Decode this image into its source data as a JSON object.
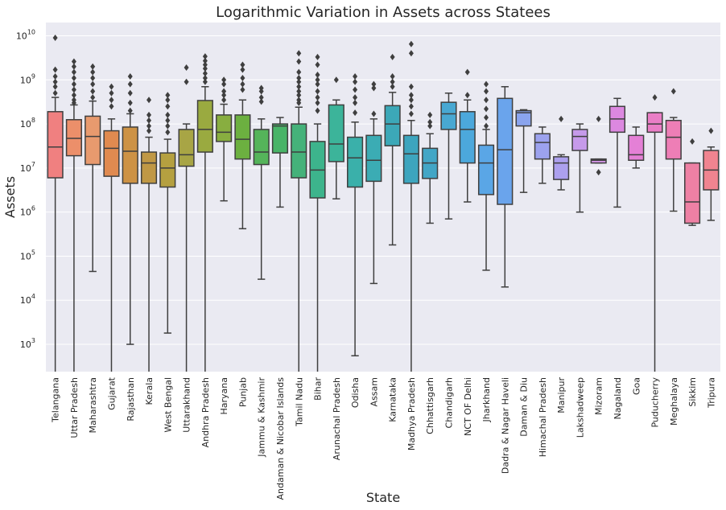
{
  "chart_data": {
    "type": "box",
    "title": "Logarithmic Variation in Assets across Statees",
    "xlabel": "State",
    "ylabel": "Assets",
    "yscale": "log",
    "ylim": [
      240,
      20000000000
    ],
    "grid": true,
    "y_tick_base": "10",
    "y_ticks": [
      {
        "value": 1000,
        "exp": "3"
      },
      {
        "value": 10000,
        "exp": "4"
      },
      {
        "value": 100000,
        "exp": "5"
      },
      {
        "value": 1000000,
        "exp": "6"
      },
      {
        "value": 10000000,
        "exp": "7"
      },
      {
        "value": 100000000,
        "exp": "8"
      },
      {
        "value": 1000000000,
        "exp": "9"
      },
      {
        "value": 10000000000,
        "exp": "10"
      }
    ],
    "categories": [
      "Telangana",
      "Uttar Pradesh",
      "Maharashtra",
      "Gujarat",
      "Rajasthan",
      "Kerala",
      "West Bengal",
      "Uttarakhand",
      "Andhra Pradesh",
      "Haryana",
      "Punjab",
      "Jammu & Kashmir",
      "Andaman & Nicobar Islands",
      "Tamil Nadu",
      "Bihar",
      "Arunachal Pradesh",
      "Odisha",
      "Assam",
      "Karnataka",
      "Madhya Pradesh",
      "Chhattisgarh",
      "Chandigarh",
      "NCT OF Delhi",
      "Jharkhand",
      "Dadra & Nagar Haveli",
      "Daman & Diu",
      "Himachal Pradesh",
      "Manipur",
      "Lakshadweep",
      "Mizoram",
      "Nagaland",
      "Goa",
      "Puducherry",
      "Meghalaya",
      "Sikkim",
      "Tripura"
    ],
    "colors": [
      "#f08080",
      "#ec8f6a",
      "#e89a6e",
      "#e08a50",
      "#cd9245",
      "#c09845",
      "#b5a040",
      "#a8a545",
      "#9aaa40",
      "#88ae40",
      "#6cb040",
      "#55b45a",
      "#48b468",
      "#45b27a",
      "#3db48c",
      "#3cb49a",
      "#3ab0aa",
      "#3bacb4",
      "#3ca8b8",
      "#3da5be",
      "#42a6c6",
      "#48a8d2",
      "#4ca8dc",
      "#5aa6e6",
      "#6aa4ec",
      "#8aa4ee",
      "#9ca2ee",
      "#aca0ee",
      "#c69aea",
      "#d294e6",
      "#dc88e0",
      "#e480d6",
      "#ea7ec6",
      "#ee7eb6",
      "#ee80a4",
      "#f08490"
    ],
    "boxes": [
      {
        "q1": 6000000,
        "median": 30000000,
        "q3": 190000000,
        "lo": 240,
        "hi": 400000000,
        "fliers": [
          9000000000,
          1700000000,
          1200000000,
          900000000,
          700000000,
          500000000
        ]
      },
      {
        "q1": 19000000,
        "median": 47000000,
        "q3": 125000000,
        "lo": 240,
        "hi": 270000000,
        "fliers": [
          2600000000,
          2000000000,
          1500000000,
          1100000000,
          800000000,
          600000000,
          450000000,
          350000000,
          300000000
        ]
      },
      {
        "q1": 12000000,
        "median": 52000000,
        "q3": 150000000,
        "lo": 45000,
        "hi": 330000000,
        "fliers": [
          2000000000,
          1500000000,
          1100000000,
          800000000,
          550000000,
          400000000
        ]
      },
      {
        "q1": 6500000,
        "median": 28000000,
        "q3": 70000000,
        "lo": 240,
        "hi": 130000000,
        "fliers": [
          700000000,
          500000000,
          350000000,
          250000000
        ]
      },
      {
        "q1": 4500000,
        "median": 24000000,
        "q3": 85000000,
        "lo": 1000,
        "hi": 170000000,
        "fliers": [
          1200000000,
          800000000,
          500000000,
          300000000,
          200000000
        ]
      },
      {
        "q1": 4500000,
        "median": 13000000,
        "q3": 23000000,
        "lo": 240,
        "hi": 50000000,
        "fliers": [
          350000000,
          160000000,
          120000000,
          90000000,
          70000000
        ]
      },
      {
        "q1": 3700000,
        "median": 10000000,
        "q3": 22000000,
        "lo": 1800,
        "hi": 45000000,
        "fliers": [
          450000000,
          350000000,
          250000000,
          160000000,
          120000000,
          90000000,
          65000000
        ]
      },
      {
        "q1": 11000000,
        "median": 20000000,
        "q3": 75000000,
        "lo": 240,
        "hi": 100000000,
        "fliers": [
          1900000000,
          900000000
        ]
      },
      {
        "q1": 23000000,
        "median": 75000000,
        "q3": 340000000,
        "lo": 240,
        "hi": 700000000,
        "fliers": [
          3400000000,
          2700000000,
          2200000000,
          1800000000,
          1400000000,
          1100000000,
          900000000
        ]
      },
      {
        "q1": 40000000,
        "median": 65000000,
        "q3": 160000000,
        "lo": 1800000,
        "hi": 280000000,
        "fliers": [
          1000000000,
          800000000,
          550000000,
          450000000,
          350000000
        ]
      },
      {
        "q1": 16000000,
        "median": 45000000,
        "q3": 160000000,
        "lo": 420000,
        "hi": 350000000,
        "fliers": [
          2200000000,
          1700000000,
          1100000000,
          800000000,
          600000000
        ]
      },
      {
        "q1": 12000000,
        "median": 23000000,
        "q3": 75000000,
        "lo": 30000,
        "hi": 130000000,
        "fliers": [
          650000000,
          550000000,
          400000000,
          320000000
        ]
      },
      {
        "q1": 22000000,
        "median": 90000000,
        "q3": 100000000,
        "lo": 1300000,
        "hi": 140000000,
        "fliers": []
      },
      {
        "q1": 6000000,
        "median": 23000000,
        "q3": 100000000,
        "lo": 240,
        "hi": 240000000,
        "fliers": [
          4000000000,
          2600000000,
          1500000000,
          1100000000,
          900000000,
          700000000,
          550000000,
          450000000,
          350000000,
          300000000
        ]
      },
      {
        "q1": 2100000,
        "median": 9000000,
        "q3": 40000000,
        "lo": 240,
        "hi": 100000000,
        "fliers": [
          3300000000,
          2200000000,
          1300000000,
          1000000000,
          800000000,
          550000000,
          400000000,
          300000000,
          200000000
        ]
      },
      {
        "q1": 14000000,
        "median": 35000000,
        "q3": 270000000,
        "lo": 2000000,
        "hi": 350000000,
        "fliers": [
          1000000000
        ]
      },
      {
        "q1": 3700000,
        "median": 17000000,
        "q3": 50000000,
        "lo": 550,
        "hi": 110000000,
        "fliers": [
          1200000000,
          900000000,
          600000000,
          400000000,
          300000000,
          180000000
        ]
      },
      {
        "q1": 5000000,
        "median": 15000000,
        "q3": 55000000,
        "lo": 24000,
        "hi": 130000000,
        "fliers": [
          800000000,
          650000000,
          170000000
        ]
      },
      {
        "q1": 32000000,
        "median": 100000000,
        "q3": 260000000,
        "lo": 180000,
        "hi": 520000000,
        "fliers": [
          3300000000,
          1200000000,
          900000000,
          700000000
        ]
      },
      {
        "q1": 4500000,
        "median": 21000000,
        "q3": 55000000,
        "lo": 240,
        "hi": 120000000,
        "fliers": [
          6500000000,
          4000000000,
          700000000,
          450000000,
          350000000,
          250000000,
          170000000
        ]
      },
      {
        "q1": 5800000,
        "median": 13000000,
        "q3": 28000000,
        "lo": 560000,
        "hi": 60000000,
        "fliers": [
          160000000,
          110000000,
          90000000
        ]
      },
      {
        "q1": 75000000,
        "median": 170000000,
        "q3": 310000000,
        "lo": 700000,
        "hi": 500000000,
        "fliers": []
      },
      {
        "q1": 13000000,
        "median": 75000000,
        "q3": 190000000,
        "lo": 1700000,
        "hi": 350000000,
        "fliers": [
          1500000000,
          450000000
        ]
      },
      {
        "q1": 2500000,
        "median": 13000000,
        "q3": 33000000,
        "lo": 48000,
        "hi": 75000000,
        "fliers": [
          800000000,
          550000000,
          350000000,
          220000000,
          140000000,
          90000000
        ]
      },
      {
        "q1": 1500000,
        "median": 26000000,
        "q3": 380000000,
        "lo": 20000,
        "hi": 700000000,
        "fliers": []
      },
      {
        "q1": 90000000,
        "median": 180000000,
        "q3": 200000000,
        "lo": 2800000,
        "hi": 210000000,
        "fliers": []
      },
      {
        "q1": 16000000,
        "median": 38000000,
        "q3": 60000000,
        "lo": 4500000,
        "hi": 85000000,
        "fliers": []
      },
      {
        "q1": 5500000,
        "median": 13000000,
        "q3": 18000000,
        "lo": 3200000,
        "hi": 20000000,
        "fliers": [
          130000000
        ]
      },
      {
        "q1": 25000000,
        "median": 52000000,
        "q3": 75000000,
        "lo": 1000000,
        "hi": 100000000,
        "fliers": []
      },
      {
        "q1": 13000000,
        "median": 15000000,
        "q3": 16000000,
        "lo": 13000000,
        "hi": 16000000,
        "fliers": [
          130000000,
          8000000
        ]
      },
      {
        "q1": 65000000,
        "median": 130000000,
        "q3": 250000000,
        "lo": 1300000,
        "hi": 380000000,
        "fliers": []
      },
      {
        "q1": 15000000,
        "median": 20000000,
        "q3": 55000000,
        "lo": 10000000,
        "hi": 85000000,
        "fliers": []
      },
      {
        "q1": 65000000,
        "median": 100000000,
        "q3": 180000000,
        "lo": 240,
        "hi": 180000000,
        "fliers": [
          400000000
        ]
      },
      {
        "q1": 16000000,
        "median": 50000000,
        "q3": 120000000,
        "lo": 1050000,
        "hi": 140000000,
        "fliers": [
          550000000
        ]
      },
      {
        "q1": 560000,
        "median": 1700000,
        "q3": 13000000,
        "lo": 500000,
        "hi": 13000000,
        "fliers": [
          40000000
        ]
      },
      {
        "q1": 3200000,
        "median": 9000000,
        "q3": 25000000,
        "lo": 650000,
        "hi": 30000000,
        "fliers": [
          70000000
        ]
      }
    ]
  }
}
